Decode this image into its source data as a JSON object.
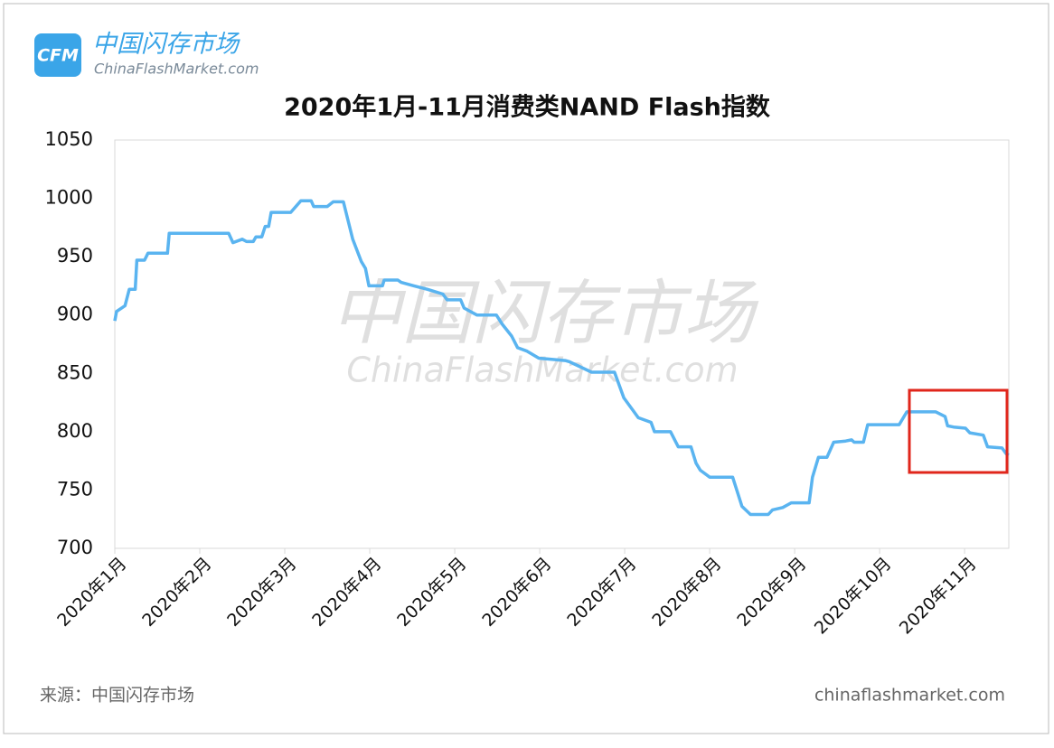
{
  "chart_data": {
    "type": "line",
    "title": "2020年1月-11月消费类NAND Flash指数",
    "logo": {
      "mark": "CFM",
      "name": "中国闪存市场",
      "site": "ChinaFlashMarket.com"
    },
    "watermark": {
      "name": "中国闪存市场",
      "site": "ChinaFlashMarket.com"
    },
    "source": "来源：中国闪存市场",
    "footer_site": "chinaflashmarket.com",
    "x": [
      0,
      0.02,
      0.12,
      0.17,
      0.24,
      0.26,
      0.35,
      0.39,
      0.62,
      0.64,
      1.34,
      1.39,
      1.5,
      1.55,
      1.63,
      1.66,
      1.73,
      1.77,
      1.81,
      1.84,
      2.07,
      2.19,
      2.31,
      2.34,
      2.5,
      2.57,
      2.69,
      2.8,
      2.9,
      2.95,
      2.99,
      3.15,
      3.17,
      3.33,
      3.37,
      3.52,
      3.68,
      3.86,
      3.91,
      4.07,
      4.11,
      4.26,
      4.49,
      4.56,
      4.67,
      4.74,
      4.85,
      4.99,
      5.14,
      5.3,
      5.35,
      5.61,
      5.88,
      5.99,
      6.1,
      6.16,
      6.31,
      6.35,
      6.54,
      6.63,
      6.78,
      6.84,
      6.89,
      7.0,
      7.27,
      7.38,
      7.48,
      7.69,
      7.74,
      7.86,
      7.96,
      8.17,
      8.21,
      8.28,
      8.38,
      8.46,
      8.6,
      8.67,
      8.7,
      8.81,
      8.86,
      9.23,
      9.32,
      9.66,
      9.77,
      9.8,
      9.87,
      10.01,
      10.06,
      10.22,
      10.27,
      10.44,
      10.49,
      10.52
    ],
    "series": [
      {
        "name": "消费类NAND Flash指数",
        "color": "#5ab4f0",
        "values": [
          895,
          903,
          908,
          922,
          922,
          947,
          947,
          953,
          953,
          970,
          970,
          962,
          965,
          963,
          963,
          967,
          967,
          976,
          976,
          988,
          988,
          998,
          998,
          993,
          993,
          997,
          997,
          965,
          946,
          940,
          925,
          925,
          930,
          930,
          928,
          925,
          922,
          918,
          913,
          913,
          906,
          900,
          900,
          892,
          882,
          872,
          869,
          863,
          862,
          861,
          860,
          851,
          851,
          829,
          818,
          812,
          808,
          800,
          800,
          787,
          787,
          773,
          767,
          761,
          761,
          736,
          729,
          729,
          733,
          735,
          739,
          739,
          761,
          778,
          778,
          791,
          792,
          793,
          791,
          791,
          806,
          806,
          817,
          817,
          813,
          805,
          804,
          803,
          799,
          797,
          787,
          786,
          781,
          780
        ]
      }
    ],
    "xlim": [
      0,
      10.52
    ],
    "xticks": [
      {
        "value": 0,
        "label": "2020年1月"
      },
      {
        "value": 1,
        "label": "2020年2月"
      },
      {
        "value": 2,
        "label": "2020年3月"
      },
      {
        "value": 3,
        "label": "2020年4月"
      },
      {
        "value": 4,
        "label": "2020年5月"
      },
      {
        "value": 5,
        "label": "2020年6月"
      },
      {
        "value": 6,
        "label": "2020年7月"
      },
      {
        "value": 7,
        "label": "2020年8月"
      },
      {
        "value": 8,
        "label": "2020年9月"
      },
      {
        "value": 9,
        "label": "2020年10月"
      },
      {
        "value": 10,
        "label": "2020年11月"
      }
    ],
    "ylim": [
      700,
      1050
    ],
    "yticks": [
      700,
      750,
      800,
      850,
      900,
      950,
      1000,
      1050
    ],
    "grid": false
  }
}
